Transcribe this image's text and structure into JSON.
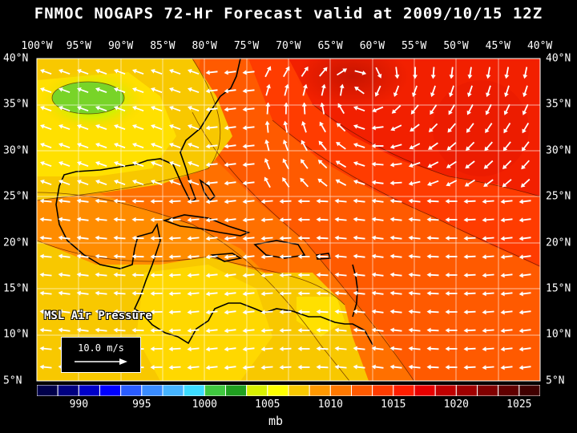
{
  "title": "FNMOC NOGAPS 72-Hr Forecast valid at 2009/10/15 12Z",
  "longitude_labels": [
    "100°W",
    "95°W",
    "90°W",
    "85°W",
    "80°W",
    "75°W",
    "70°W",
    "65°W",
    "60°W",
    "55°W",
    "50°W",
    "45°W",
    "40°W"
  ],
  "latitude_labels": [
    "40°N",
    "35°N",
    "30°N",
    "25°N",
    "20°N",
    "15°N",
    "10°N",
    "5°N"
  ],
  "field_label": "MSL Air Pressure",
  "vector_scale": "10.0 m/s",
  "colorbar": {
    "tick_labels": [
      "990",
      "995",
      "1000",
      "1005",
      "1010",
      "1015",
      "1020",
      "1025"
    ],
    "units": "mb",
    "colors": [
      "#00004a",
      "#000080",
      "#0000c8",
      "#0000ff",
      "#2a5cff",
      "#3a8cff",
      "#46b4ff",
      "#3cdcff",
      "#40c840",
      "#20a020",
      "#d8f000",
      "#ffff00",
      "#f8c800",
      "#ff9800",
      "#ff7800",
      "#ff5a00",
      "#ff3c00",
      "#ff1e00",
      "#e80000",
      "#c00000",
      "#a00000",
      "#800000",
      "#600000",
      "#400000"
    ]
  },
  "colors": {
    "high_pressure": "#d01800",
    "low_pressure": "#7cd628",
    "land_outline": "#000000",
    "wind_vectors": "#ffffff"
  }
}
